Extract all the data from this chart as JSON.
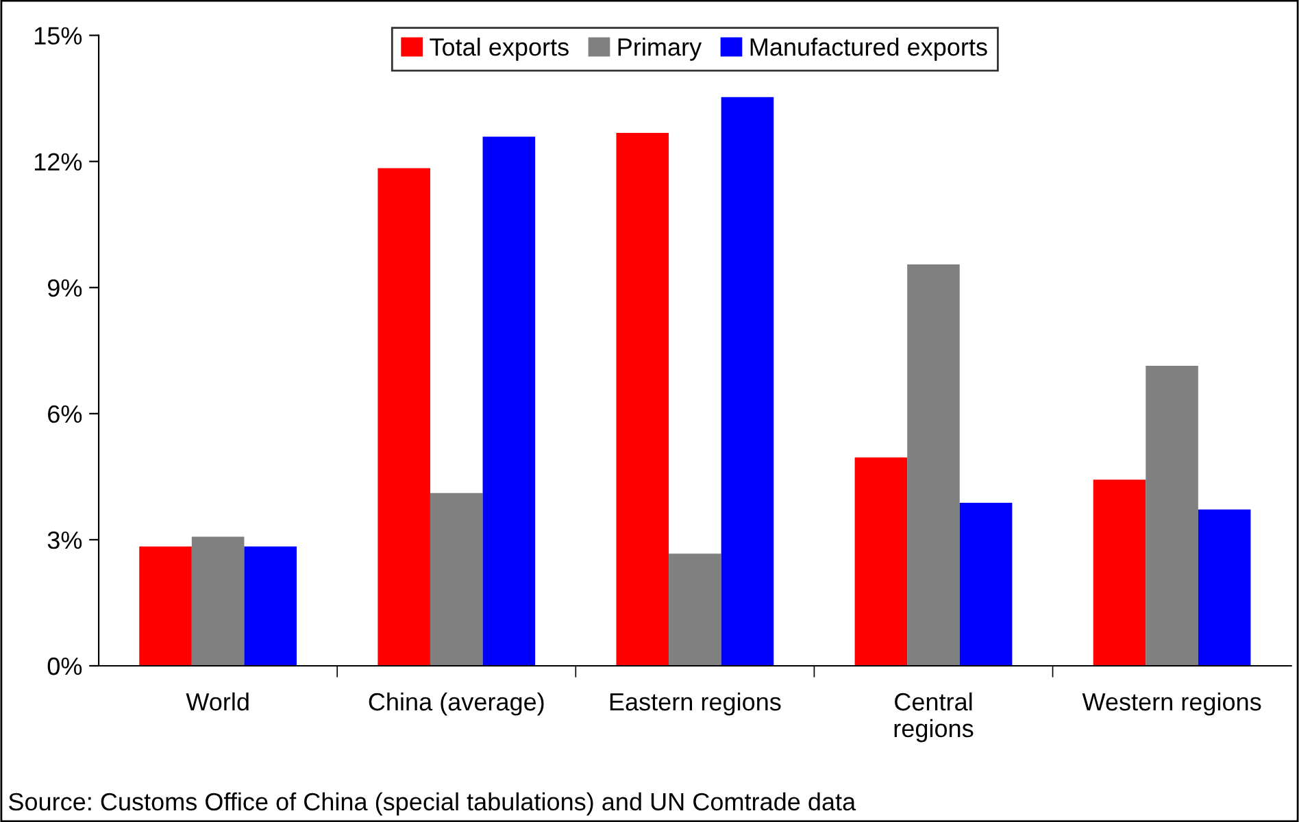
{
  "chart_data": {
    "type": "bar",
    "categories": [
      "World",
      "China (average)",
      "Eastern regions",
      "Central\nregions",
      "Western regions"
    ],
    "series": [
      {
        "name": "Total exports",
        "color": "#ff0000",
        "values": [
          2.84,
          11.84,
          12.68,
          4.96,
          4.43
        ]
      },
      {
        "name": "Primary",
        "color": "#808080",
        "values": [
          3.07,
          4.11,
          2.67,
          9.55,
          7.14
        ]
      },
      {
        "name": "Manufactured exports",
        "color": "#0000ff",
        "values": [
          2.84,
          12.59,
          13.53,
          3.88,
          3.72
        ]
      }
    ],
    "ylim": [
      0,
      15
    ],
    "yticks": [
      {
        "value": 0,
        "label": "0%"
      },
      {
        "value": 3,
        "label": "3%"
      },
      {
        "value": 6,
        "label": "6%"
      },
      {
        "value": 9,
        "label": "9%"
      },
      {
        "value": 12,
        "label": "12%"
      },
      {
        "value": 15,
        "label": "15%"
      }
    ],
    "grid": false,
    "legend": "top",
    "annotations": [
      "Source: Customs Office of China (special tabulations) and UN Comtrade data"
    ]
  }
}
